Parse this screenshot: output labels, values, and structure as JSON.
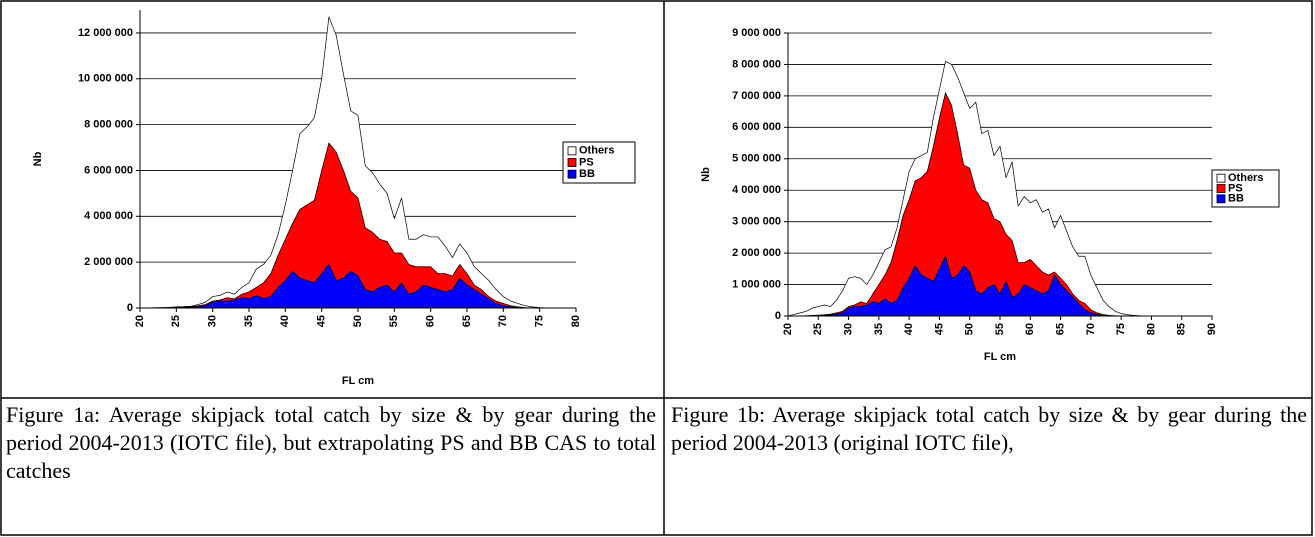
{
  "chart_data": [
    {
      "type": "stacked-area",
      "y_label": "Nb",
      "x_label": "FL cm",
      "x": [
        20,
        21,
        22,
        23,
        24,
        25,
        26,
        27,
        28,
        29,
        30,
        31,
        32,
        33,
        34,
        35,
        36,
        37,
        38,
        39,
        40,
        41,
        42,
        43,
        44,
        45,
        46,
        47,
        48,
        49,
        50,
        51,
        52,
        53,
        54,
        55,
        56,
        57,
        58,
        59,
        60,
        61,
        62,
        63,
        64,
        65,
        66,
        67,
        68,
        69,
        70,
        71,
        72,
        73,
        74,
        75,
        76,
        77,
        78,
        79,
        80
      ],
      "series": [
        {
          "name": "BB",
          "color": "#0000ff",
          "values": [
            0,
            0,
            3000,
            5000,
            10000,
            15000,
            20000,
            30000,
            60000,
            100000,
            250000,
            300000,
            300000,
            350000,
            450000,
            400000,
            550000,
            400000,
            500000,
            900000,
            1200000,
            1600000,
            1300000,
            1200000,
            1100000,
            1500000,
            1900000,
            1200000,
            1300000,
            1600000,
            1400000,
            800000,
            700000,
            900000,
            1000000,
            700000,
            1100000,
            600000,
            700000,
            1000000,
            900000,
            800000,
            700000,
            800000,
            1300000,
            1000000,
            800000,
            600000,
            400000,
            200000,
            100000,
            50000,
            20000,
            5000,
            0,
            0,
            0,
            0,
            0,
            0,
            0
          ]
        },
        {
          "name": "PS",
          "color": "#ff0000",
          "values": [
            0,
            0,
            2000,
            5000,
            10000,
            15000,
            20000,
            30000,
            40000,
            50000,
            50000,
            50000,
            150000,
            50000,
            150000,
            300000,
            350000,
            700000,
            1000000,
            1400000,
            1800000,
            2100000,
            3000000,
            3300000,
            3600000,
            4500000,
            5300000,
            5600000,
            4700000,
            3500000,
            3400000,
            2700000,
            2600000,
            2100000,
            1900000,
            1700000,
            1300000,
            1300000,
            1100000,
            800000,
            900000,
            700000,
            800000,
            600000,
            600000,
            500000,
            200000,
            200000,
            100000,
            100000,
            100000,
            50000,
            30000,
            15000,
            10000,
            0,
            0,
            0,
            0,
            0,
            0
          ]
        },
        {
          "name": "Others",
          "color": "#ffffff",
          "values": [
            0,
            0,
            5000,
            10000,
            10000,
            20000,
            20000,
            20000,
            50000,
            100000,
            200000,
            200000,
            250000,
            200000,
            300000,
            400000,
            800000,
            800000,
            800000,
            900000,
            1500000,
            2300000,
            3300000,
            3400000,
            3600000,
            4000000,
            5500000,
            5100000,
            4200000,
            3500000,
            3600000,
            2700000,
            2600000,
            2400000,
            2100000,
            1500000,
            2400000,
            1100000,
            1200000,
            1400000,
            1300000,
            1600000,
            1200000,
            800000,
            900000,
            900000,
            800000,
            700000,
            700000,
            500000,
            300000,
            200000,
            150000,
            80000,
            40000,
            20000,
            0,
            0,
            0,
            0,
            0
          ]
        }
      ],
      "xlim": [
        20,
        80
      ],
      "xticks": [
        20,
        25,
        30,
        35,
        40,
        45,
        50,
        55,
        60,
        65,
        70,
        75,
        80
      ],
      "ylim": [
        0,
        13000000
      ],
      "yticks": [
        {
          "value": 0,
          "label": "0"
        },
        {
          "value": 2000000,
          "label": "2 000 000"
        },
        {
          "value": 4000000,
          "label": "4 000 000"
        },
        {
          "value": 6000000,
          "label": "6 000 000"
        },
        {
          "value": 8000000,
          "label": "8 000 000"
        },
        {
          "value": 10000000,
          "label": "10 000 000"
        },
        {
          "value": 12000000,
          "label": "12 000 000"
        }
      ],
      "grid": true,
      "legend": "right"
    },
    {
      "type": "stacked-area",
      "y_label": "Nb",
      "x_label": "FL cm",
      "x": [
        20,
        21,
        22,
        23,
        24,
        25,
        26,
        27,
        28,
        29,
        30,
        31,
        32,
        33,
        34,
        35,
        36,
        37,
        38,
        39,
        40,
        41,
        42,
        43,
        44,
        45,
        46,
        47,
        48,
        49,
        50,
        51,
        52,
        53,
        54,
        55,
        56,
        57,
        58,
        59,
        60,
        61,
        62,
        63,
        64,
        65,
        66,
        67,
        68,
        69,
        70,
        71,
        72,
        73,
        74,
        75,
        76,
        77,
        78,
        79,
        80,
        81,
        82,
        83,
        84,
        85,
        86,
        87,
        88,
        89,
        90
      ],
      "series": [
        {
          "name": "BB",
          "color": "#0000ff",
          "values": [
            0,
            0,
            0,
            5000,
            10000,
            15000,
            20000,
            30000,
            60000,
            100000,
            250000,
            300000,
            300000,
            350000,
            450000,
            400000,
            550000,
            400000,
            500000,
            900000,
            1200000,
            1600000,
            1300000,
            1200000,
            1100000,
            1500000,
            1900000,
            1200000,
            1300000,
            1600000,
            1400000,
            800000,
            700000,
            900000,
            1000000,
            700000,
            1100000,
            600000,
            700000,
            1000000,
            900000,
            800000,
            700000,
            800000,
            1300000,
            1000000,
            800000,
            600000,
            400000,
            200000,
            100000,
            50000,
            20000,
            5000,
            0,
            0,
            0,
            0,
            0,
            0,
            0,
            0,
            0,
            0,
            0,
            0,
            0,
            0,
            0,
            0,
            0
          ]
        },
        {
          "name": "PS",
          "color": "#ff0000",
          "values": [
            0,
            0,
            0,
            5000,
            10000,
            15000,
            20000,
            30000,
            40000,
            50000,
            50000,
            50000,
            150000,
            50000,
            250000,
            600000,
            750000,
            1300000,
            1900000,
            2300000,
            2500000,
            2700000,
            3100000,
            3400000,
            4300000,
            4800000,
            5200000,
            5500000,
            4500000,
            3200000,
            3300000,
            3200000,
            3000000,
            2700000,
            2100000,
            2300000,
            1500000,
            1800000,
            1000000,
            700000,
            900000,
            800000,
            700000,
            500000,
            100000,
            200000,
            200000,
            100000,
            100000,
            200000,
            100000,
            50000,
            30000,
            15000,
            10000,
            0,
            0,
            0,
            0,
            0,
            0,
            0,
            0,
            0,
            0,
            0,
            0,
            0,
            0,
            0,
            0
          ]
        },
        {
          "name": "Others",
          "color": "#ffffff",
          "values": [
            0,
            50000,
            100000,
            140000,
            230000,
            270000,
            310000,
            240000,
            400000,
            650000,
            900000,
            900000,
            750000,
            600000,
            600000,
            700000,
            800000,
            500000,
            400000,
            500000,
            900000,
            700000,
            700000,
            600000,
            900000,
            900000,
            1000000,
            1300000,
            1800000,
            2300000,
            1900000,
            2800000,
            2100000,
            2300000,
            2000000,
            2400000,
            1800000,
            2500000,
            1800000,
            2100000,
            1800000,
            2100000,
            1900000,
            2100000,
            1400000,
            2000000,
            1700000,
            1500000,
            1400000,
            1500000,
            1100000,
            800000,
            450000,
            280000,
            140000,
            80000,
            40000,
            20000,
            10000,
            0,
            0,
            0,
            0,
            0,
            0,
            0,
            0,
            0,
            0,
            0,
            0
          ]
        }
      ],
      "xlim": [
        20,
        90
      ],
      "xticks": [
        20,
        25,
        30,
        35,
        40,
        45,
        50,
        55,
        60,
        65,
        70,
        75,
        80,
        85,
        90
      ],
      "ylim": [
        0,
        9000000
      ],
      "yticks": [
        {
          "value": 0,
          "label": "0"
        },
        {
          "value": 1000000,
          "label": "1 000 000"
        },
        {
          "value": 2000000,
          "label": "2 000 000"
        },
        {
          "value": 3000000,
          "label": "3 000 000"
        },
        {
          "value": 4000000,
          "label": "4 000 000"
        },
        {
          "value": 5000000,
          "label": "5 000 000"
        },
        {
          "value": 6000000,
          "label": "6 000 000"
        },
        {
          "value": 7000000,
          "label": "7 000 000"
        },
        {
          "value": 8000000,
          "label": "8 000 000"
        },
        {
          "value": 9000000,
          "label": "9 000 000"
        }
      ],
      "grid": true,
      "legend": "right"
    }
  ],
  "captions": [
    "Figure 1a: Average skipjack total catch by size & by gear during the period 2004-2013 (IOTC file), but extrapolating PS and BB CAS to total catches",
    "Figure 1b: Average skipjack total catch by size & by gear during the period 2004-2013 (original IOTC file),"
  ]
}
